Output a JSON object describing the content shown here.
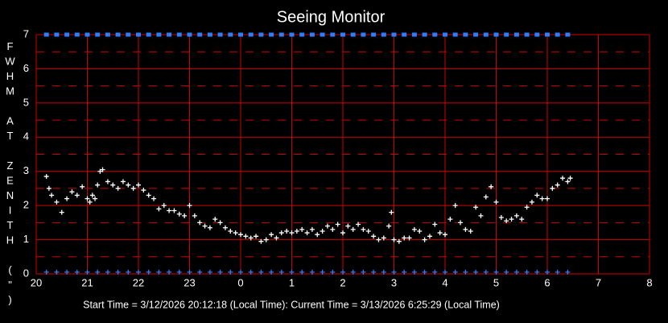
{
  "chart_data": {
    "type": "scatter",
    "title": "Seeing Monitor",
    "y_label": "FWHM AT ZENITH (\")",
    "footer": "Start Time = 3/12/2026 20:12:18 (Local Time):  Current Time = 3/13/2026 6:25:29 (Local Time)",
    "xlim": [
      20,
      32
    ],
    "ylim": [
      0,
      7
    ],
    "grid": true,
    "grid_color": "#d00000",
    "xticks": [
      20,
      21,
      22,
      23,
      {
        "value": 24,
        "label": "0"
      },
      {
        "value": 25,
        "label": "1"
      },
      {
        "value": 26,
        "label": "2"
      },
      {
        "value": 27,
        "label": "3"
      },
      {
        "value": 28,
        "label": "4"
      },
      {
        "value": 29,
        "label": "5"
      },
      {
        "value": 30,
        "label": "6"
      },
      {
        "value": 31,
        "label": "7"
      },
      {
        "value": 32,
        "label": "8"
      }
    ],
    "yticks": [
      0,
      1,
      2,
      3,
      4,
      5,
      6,
      7
    ],
    "series": [
      {
        "color": "#ffffff",
        "marker": "plus",
        "x": [
          20.2,
          20.25,
          20.3,
          20.4,
          20.5,
          20.6,
          20.7,
          20.8,
          20.9,
          21.0,
          21.05,
          21.1,
          21.15,
          21.2,
          21.25,
          21.3,
          21.4,
          21.5,
          21.6,
          21.7,
          21.8,
          21.9,
          22.0,
          22.1,
          22.2,
          22.3,
          22.4,
          22.5,
          22.6,
          22.7,
          22.8,
          22.9,
          23.0,
          23.1,
          23.2,
          23.3,
          23.4,
          23.5,
          23.6,
          23.7,
          23.8,
          23.9,
          24.0,
          24.1,
          24.2,
          24.3,
          24.4,
          24.5,
          24.6,
          24.7,
          24.8,
          24.9,
          25.0,
          25.1,
          25.2,
          25.3,
          25.4,
          25.5,
          25.6,
          25.7,
          25.8,
          25.9,
          26.0,
          26.1,
          26.2,
          26.3,
          26.4,
          26.5,
          26.6,
          26.7,
          26.8,
          26.9,
          26.95,
          27.0,
          27.1,
          27.2,
          27.3,
          27.4,
          27.5,
          27.6,
          27.7,
          27.8,
          27.9,
          28.0,
          28.1,
          28.2,
          28.3,
          28.4,
          28.5,
          28.6,
          28.7,
          28.8,
          28.9,
          29.0,
          29.1,
          29.2,
          29.3,
          29.4,
          29.5,
          29.6,
          29.7,
          29.8,
          29.9,
          30.0,
          30.1,
          30.2,
          30.3,
          30.4,
          30.45
        ],
        "values": [
          2.85,
          2.5,
          2.3,
          2.1,
          1.8,
          2.2,
          2.4,
          2.3,
          2.55,
          2.2,
          2.1,
          2.3,
          2.2,
          2.6,
          3.0,
          3.05,
          2.7,
          2.6,
          2.5,
          2.7,
          2.6,
          2.5,
          2.6,
          2.45,
          2.3,
          2.2,
          1.9,
          2.0,
          1.85,
          1.85,
          1.75,
          1.7,
          2.0,
          1.7,
          1.5,
          1.4,
          1.35,
          1.6,
          1.5,
          1.35,
          1.25,
          1.2,
          1.15,
          1.1,
          1.05,
          1.1,
          0.95,
          1.0,
          1.15,
          1.05,
          1.2,
          1.25,
          1.2,
          1.25,
          1.3,
          1.2,
          1.3,
          1.15,
          1.25,
          1.4,
          1.3,
          1.45,
          1.2,
          1.4,
          1.3,
          1.45,
          1.3,
          1.25,
          1.1,
          1.0,
          1.05,
          1.4,
          1.8,
          1.0,
          0.95,
          1.05,
          1.05,
          1.3,
          1.25,
          1.0,
          1.1,
          1.45,
          1.2,
          1.15,
          1.6,
          2.0,
          1.5,
          1.3,
          1.25,
          1.95,
          1.7,
          2.25,
          2.55,
          2.1,
          1.65,
          1.55,
          1.6,
          1.7,
          1.6,
          1.95,
          2.1,
          2.3,
          2.2,
          2.2,
          2.5,
          2.6,
          2.8,
          2.7,
          2.8
        ]
      },
      {
        "color": "#2a7fff",
        "marker": "square",
        "x": [
          20.2,
          20.4,
          20.6,
          20.8,
          21.0,
          21.2,
          21.4,
          21.6,
          21.8,
          22.0,
          22.2,
          22.4,
          22.6,
          22.8,
          23.0,
          23.2,
          23.4,
          23.6,
          23.8,
          24.0,
          24.2,
          24.4,
          24.6,
          24.8,
          25.0,
          25.2,
          25.4,
          25.6,
          25.8,
          26.0,
          26.2,
          26.4,
          26.6,
          26.8,
          27.0,
          27.2,
          27.4,
          27.6,
          27.8,
          28.0,
          28.2,
          28.4,
          28.6,
          28.8,
          29.0,
          29.2,
          29.4,
          29.6,
          29.8,
          30.0,
          30.2,
          30.4
        ],
        "values": [
          7,
          7,
          7,
          7,
          7,
          7,
          7,
          7,
          7,
          7,
          7,
          7,
          7,
          7,
          7,
          7,
          7,
          7,
          7,
          7,
          7,
          7,
          7,
          7,
          7,
          7,
          7,
          7,
          7,
          7,
          7,
          7,
          7,
          7,
          7,
          7,
          7,
          7,
          7,
          7,
          7,
          7,
          7,
          7,
          7,
          7,
          7,
          7,
          7,
          7,
          7,
          7
        ]
      },
      {
        "color": "#2a7fff",
        "marker": "plus",
        "x": [
          20.2,
          20.4,
          20.6,
          20.8,
          21.0,
          21.2,
          21.4,
          21.6,
          21.8,
          22.0,
          22.2,
          22.4,
          22.6,
          22.8,
          23.0,
          23.2,
          23.4,
          23.6,
          23.8,
          24.0,
          24.2,
          24.4,
          24.6,
          24.8,
          25.0,
          25.2,
          25.4,
          25.6,
          25.8,
          26.0,
          26.2,
          26.4,
          26.6,
          26.8,
          27.0,
          27.2,
          27.4,
          27.6,
          27.8,
          28.0,
          28.2,
          28.4,
          28.6,
          28.8,
          29.0,
          29.2,
          29.4,
          29.6,
          29.8,
          30.0,
          30.2,
          30.4
        ],
        "values": [
          0.05,
          0.05,
          0.05,
          0.05,
          0.05,
          0.05,
          0.05,
          0.05,
          0.05,
          0.05,
          0.05,
          0.05,
          0.05,
          0.05,
          0.05,
          0.05,
          0.05,
          0.05,
          0.05,
          0.05,
          0.05,
          0.05,
          0.05,
          0.05,
          0.05,
          0.05,
          0.05,
          0.05,
          0.05,
          0.05,
          0.05,
          0.05,
          0.05,
          0.05,
          0.05,
          0.05,
          0.05,
          0.05,
          0.05,
          0.05,
          0.05,
          0.05,
          0.05,
          0.05,
          0.05,
          0.05,
          0.05,
          0.05,
          0.05,
          0.05,
          0.05,
          0.05
        ]
      }
    ]
  }
}
